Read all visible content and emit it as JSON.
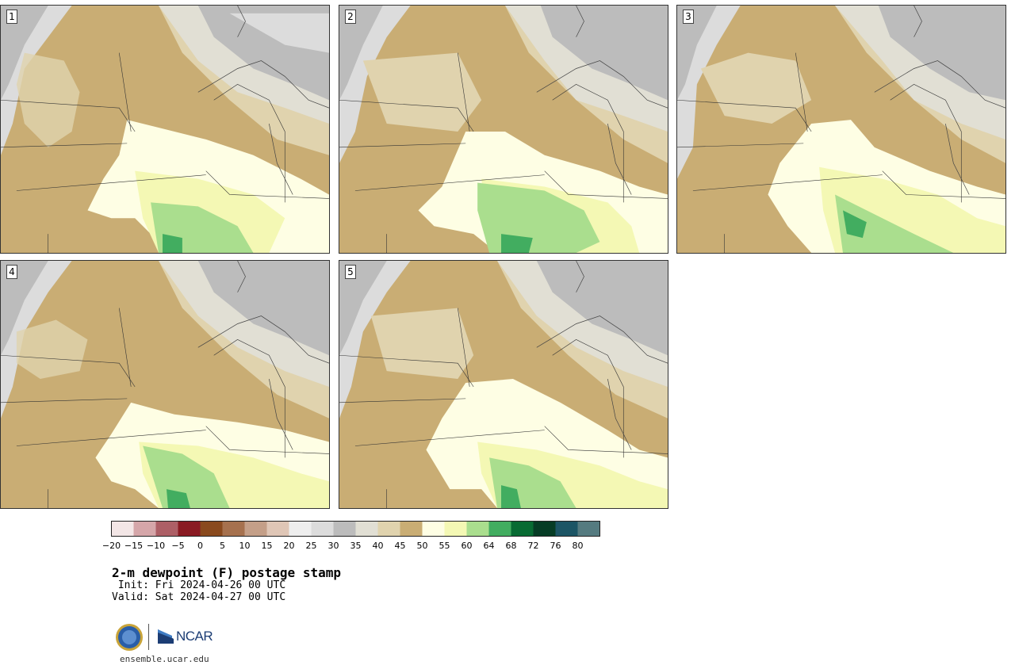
{
  "panels": [
    {
      "number": "1"
    },
    {
      "number": "2"
    },
    {
      "number": "3"
    },
    {
      "number": "4"
    },
    {
      "number": "5"
    }
  ],
  "colorbar": {
    "tick_labels": [
      "−20",
      "−15",
      "−10",
      "−5",
      "0",
      "5",
      "10",
      "15",
      "20",
      "25",
      "30",
      "35",
      "40",
      "45",
      "50",
      "55",
      "60",
      "64",
      "68",
      "72",
      "76",
      "80"
    ],
    "colors": [
      "#f3e6e6",
      "#d5a6a9",
      "#ad5f66",
      "#8a1b23",
      "#8a4a1e",
      "#a6714e",
      "#c49f88",
      "#dfc6b6",
      "#eeeeee",
      "#dcdcdc",
      "#bcbcbc",
      "#e1dfd4",
      "#e0d3ae",
      "#c9ad74",
      "#fefee4",
      "#f4f8b4",
      "#aade8e",
      "#42ad60",
      "#086b33",
      "#063c25",
      "#1c5565",
      "#557b80"
    ]
  },
  "map_colors": {
    "dew_45_50": "#c9ad74",
    "dew_40_45": "#e0d3ae",
    "dew_35_40": "#e1dfd4",
    "dew_30_35": "#bcbcbc",
    "dew_25_30": "#dcdcdc",
    "dew_50_55": "#fefee4",
    "dew_55_60": "#f4f8b4",
    "dew_60_64": "#aade8e",
    "dew_64_68": "#42ad60"
  },
  "title": "2-m dewpoint (F) postage stamp",
  "init": " Init: Fri 2024-04-26 00 UTC",
  "valid": "Valid: Sat 2024-04-27 00 UTC",
  "logo": {
    "ncar": "NCAR",
    "nsf": "NSF"
  },
  "website": "ensemble.ucar.edu"
}
